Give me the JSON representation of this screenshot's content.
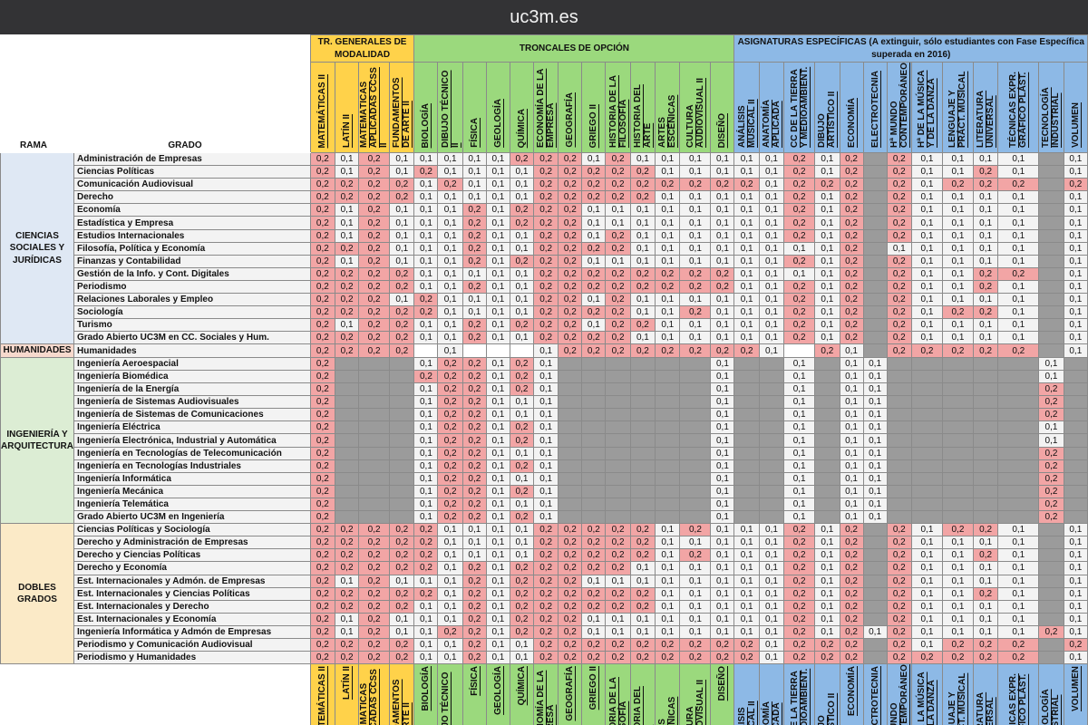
{
  "window": {
    "title": "uc3m.es"
  },
  "table": {
    "corner": {
      "rama": "RAMA",
      "grado": "GRADO"
    },
    "groups": [
      {
        "label": "TR. GENERALES DE MODALIDAD",
        "span": 4,
        "color": "#ffd24a"
      },
      {
        "label": "TRONCALES DE OPCIÓN",
        "span": 13,
        "color": "#9bd97d"
      },
      {
        "label": "ASIGNATURAS ESPECÍFICAS (A extinguir, sólo estudiantes con Fase Específica superada en 2016)",
        "span": 13,
        "color": "#8db9e6"
      }
    ],
    "subjects": [
      "MATEMÁTICAS II",
      "LATÍN II",
      "MATEMÁTICAS APLICADAS CCSS II",
      "FUNDAMENTOS DE ARTE II",
      "BIOLOGÍA",
      "DIBUJO TÉCNICO II",
      "FÍSICA",
      "GEOLOGÍA",
      "QUÍMICA",
      "ECONOMÍA DE LA EMPRESA",
      "GEOGRAFÍA",
      "GRIEGO II",
      "HISTORIA DE LA FILOSOFÍA",
      "HISTORIA DEL ARTE",
      "ARTES ESCÉNICAS",
      "CULTURA AUDIOVISUAL II",
      "DISEÑO",
      "ANÁLISIS MUSICAL II",
      "ANATOMÍA APLICADA",
      "CC DE LA TIERRA Y MEDIOAMBIENT.",
      "DIBUJO ARTÍSTICO II",
      "ECONOMÍA",
      "ELECTROTECNIA",
      "Hª MUNDO CONTEMPORÁNEO",
      "Hª DE LA MÚSICA Y DE LA DANZA",
      "LENGUAJE Y PRÁCT. MUSICAL",
      "LITERATURA UNIVERSAL",
      "TÉCNICAS EXPR. GRÁFICO PLÁST.",
      "TECNOLOGÍA INDUSTRIAL",
      "VOLUMEN"
    ],
    "ramas": [
      {
        "name": "CIENCIAS SOCIALES Y JURÍDICAS",
        "tone": "css",
        "rows": [
          {
            "grado": "Administración de Empresas",
            "v": "2,1,2,1,1,1,1,1,2,2,2,1,2,1,1,1,1,1,1,2,1,2,,2,1,1,1,1,,1"
          },
          {
            "grado": "Ciencias Políticas",
            "v": "2,1,2,1,2,1,1,1,1,2,2,2,2,2,1,1,1,1,1,2,1,2,,2,1,1,2,1,,1"
          },
          {
            "grado": "Comunicación Audiovisual",
            "v": "2,2,2,2,1,2,1,1,1,2,2,2,2,2,2,2,2,2,1,2,2,2,,2,1,2,2,2,,2"
          },
          {
            "grado": "Derecho",
            "v": "2,2,2,2,1,1,1,1,1,2,2,2,2,2,1,1,1,1,1,2,1,2,,2,1,1,1,1,,1"
          },
          {
            "grado": "Economía",
            "v": "2,1,2,1,1,1,2,1,2,2,2,1,1,1,1,1,1,1,1,2,1,2,,2,1,1,1,1,,1"
          },
          {
            "grado": "Estadística y Empresa",
            "v": "2,1,2,1,1,1,2,1,2,2,2,1,1,1,1,1,1,1,1,2,1,2,,2,1,1,1,1,,1"
          },
          {
            "grado": "Estudios Internacionales",
            "v": "2,1,2,1,1,1,2,1,1,2,2,1,2,1,1,1,1,1,1,2,1,2,,2,1,1,1,1,,1"
          },
          {
            "grado": "Filosofía, Política y Economía",
            "v": "2,2,2,1,1,1,2,1,1,2,2,2,2,1,1,1,1,1,1,1,1,2,,1,1,1,1,1,,1"
          },
          {
            "grado": "Finanzas y Contabilidad",
            "v": "2,1,2,1,1,1,2,1,2,2,2,1,1,1,1,1,1,1,1,2,1,2,,2,1,1,1,1,,1"
          },
          {
            "grado": "Gestión de la Info. y Cont. Digitales",
            "v": "2,2,2,2,1,1,1,1,1,2,2,2,2,2,2,2,2,1,1,1,1,2,,2,1,1,2,2,,1"
          },
          {
            "grado": "Periodismo",
            "v": "2,2,2,2,1,1,2,1,1,2,2,2,2,2,2,2,2,1,1,2,1,2,,2,1,1,2,1,,1"
          },
          {
            "grado": "Relaciones Laborales y Empleo",
            "v": "2,2,2,1,2,1,1,1,1,2,2,1,2,1,1,1,1,1,1,2,1,2,,2,1,1,1,1,,1"
          },
          {
            "grado": "Sociología",
            "v": "2,2,2,2,2,1,1,1,1,2,2,2,2,1,1,2,1,1,1,2,1,2,,2,1,2,2,1,,1"
          },
          {
            "grado": "Turismo",
            "v": "2,1,2,2,1,1,2,1,2,2,2,1,2,2,1,1,1,1,1,2,1,2,,2,1,1,1,1,,1"
          },
          {
            "grado": "Grado Abierto UC3M en CC. Sociales y Hum.",
            "v": "2,2,2,2,1,1,2,1,1,2,2,2,2,1,1,1,1,1,1,2,1,2,,2,1,1,1,1,,1"
          }
        ]
      },
      {
        "name": "HUMANIDADES",
        "tone": "hum",
        "rows": [
          {
            "grado": "Humanidades",
            "v": "2,2,2,2,,1,,,,1,2,2,2,2,2,2,2,2,1,,2,1,,2,2,2,2,2,,1"
          }
        ]
      },
      {
        "name": "INGENIERÍA Y ARQUITECTURA",
        "tone": "ing",
        "rows": [
          {
            "grado": "Ingeniería Aeroespacial",
            "v": "2,x,x,x,1,2,2,1,2,1,x,x,x,x,x,x,1,x,x,1,x,1,1,x,x,x,x,x,1,x"
          },
          {
            "grado": "Ingeniería Biomédica",
            "v": "2,x,x,x,2,2,2,1,2,1,x,x,x,x,x,x,1,x,x,1,x,1,1,x,x,x,x,x,1,x"
          },
          {
            "grado": "Ingeniería de la Energía",
            "v": "2,x,x,x,1,2,2,1,2,1,x,x,x,x,x,x,1,x,x,1,x,1,1,x,x,x,x,x,2,x"
          },
          {
            "grado": "Ingeniería de Sistemas Audiovisuales",
            "v": "2,x,x,x,1,2,2,1,1,1,x,x,x,x,x,x,1,x,x,1,x,1,1,x,x,x,x,x,2,x"
          },
          {
            "grado": "Ingeniería de Sistemas de Comunicaciones",
            "v": "2,x,x,x,1,2,2,1,1,1,x,x,x,x,x,x,1,x,x,1,x,1,1,x,x,x,x,x,2,x"
          },
          {
            "grado": "Ingeniería Eléctrica",
            "v": "2,x,x,x,1,2,2,1,2,1,x,x,x,x,x,x,1,x,x,1,x,1,1,x,x,x,x,x,1,x"
          },
          {
            "grado": "Ingeniería Electrónica, Industrial y Automática",
            "v": "2,x,x,x,1,2,2,1,2,1,x,x,x,x,x,x,1,x,x,1,x,1,1,x,x,x,x,x,1,x"
          },
          {
            "grado": "Ingeniería en Tecnologías de Telecomunicación",
            "v": "2,x,x,x,1,2,2,1,1,1,x,x,x,x,x,x,1,x,x,1,x,1,1,x,x,x,x,x,2,x"
          },
          {
            "grado": "Ingeniería en Tecnologías Industriales",
            "v": "2,x,x,x,1,2,2,1,2,1,x,x,x,x,x,x,1,x,x,1,x,1,1,x,x,x,x,x,2,x"
          },
          {
            "grado": "Ingeniería Informática",
            "v": "2,x,x,x,1,2,2,1,1,1,x,x,x,x,x,x,1,x,x,1,x,1,1,x,x,x,x,x,2,x"
          },
          {
            "grado": "Ingeniería Mecánica",
            "v": "2,x,x,x,1,2,2,1,2,1,x,x,x,x,x,x,1,x,x,1,x,1,1,x,x,x,x,x,2,x"
          },
          {
            "grado": "Ingeniería Telemática",
            "v": "2,x,x,x,1,2,2,1,1,1,x,x,x,x,x,x,1,x,x,1,x,1,1,x,x,x,x,x,2,x"
          },
          {
            "grado": "Grado Abierto UC3M en Ingeniería",
            "v": "2,x,x,x,1,2,2,1,2,1,x,x,x,x,x,x,1,x,x,1,x,1,1,x,x,x,x,x,2,x"
          }
        ]
      },
      {
        "name": "DOBLES GRADOS",
        "tone": "dob",
        "rows": [
          {
            "grado": "Ciencias Políticas y Sociología",
            "v": "2,2,2,2,2,1,1,1,1,2,2,2,2,2,1,2,1,1,1,2,1,2,,2,1,2,2,1,,1"
          },
          {
            "grado": "Derecho y Administración de Empresas",
            "v": "2,2,2,2,2,1,1,1,1,2,2,2,2,2,1,1,1,1,1,2,1,2,,2,1,1,1,1,,1"
          },
          {
            "grado": "Derecho y Ciencias Políticas",
            "v": "2,2,2,2,2,1,1,1,1,2,2,2,2,2,1,2,1,1,1,2,1,2,,2,1,1,2,1,,1"
          },
          {
            "grado": "Derecho y Economía",
            "v": "2,2,2,2,2,1,2,1,2,2,2,2,2,1,1,1,1,1,1,2,1,2,,2,1,1,1,1,,1"
          },
          {
            "grado": "Est. Internacionales y Admón. de Empresas",
            "v": "2,1,2,1,1,1,2,1,2,2,2,1,1,1,1,1,1,1,1,2,1,2,,2,1,1,1,1,,1"
          },
          {
            "grado": "Est. Internacionales y Ciencias Políticas",
            "v": "2,2,2,2,2,1,2,1,2,2,2,2,2,2,1,1,1,1,1,2,1,2,,2,1,1,2,1,,1"
          },
          {
            "grado": "Est. Internacionales y Derecho",
            "v": "2,2,2,2,1,1,2,1,2,2,2,2,2,2,1,1,1,1,1,2,1,2,,2,1,1,1,1,,1"
          },
          {
            "grado": "Est. Internacionales y Economía",
            "v": "2,1,2,1,1,1,2,1,2,2,2,1,1,1,1,1,1,1,1,2,1,2,,2,1,1,1,1,,1"
          },
          {
            "grado": "Ingeniería Informática y Admón de Empresas",
            "v": "2,1,2,1,1,2,2,1,2,2,2,1,1,1,1,1,1,1,1,2,1,2,1,2,1,1,1,1,2,1"
          },
          {
            "grado": "Periodismo y Comunicación Audiovisual",
            "v": "2,2,2,2,1,1,2,1,1,2,2,2,2,2,2,2,2,2,1,2,2,2,,2,1,2,2,2,,2"
          },
          {
            "grado": "Periodismo y Humanidades",
            "v": "2,2,2,2,1,1,2,1,1,2,2,2,2,2,2,2,2,2,1,2,2,2,,2,2,2,2,2,,1"
          }
        ]
      }
    ],
    "cell_text": {
      "hi": "0,2",
      "lo": "0,1"
    },
    "colors": {
      "hi": "#f2a5a5",
      "blocked": "#9b9b9b",
      "yellow": "#ffd24a",
      "green": "#9bd97d",
      "blue": "#8db9e6"
    }
  }
}
